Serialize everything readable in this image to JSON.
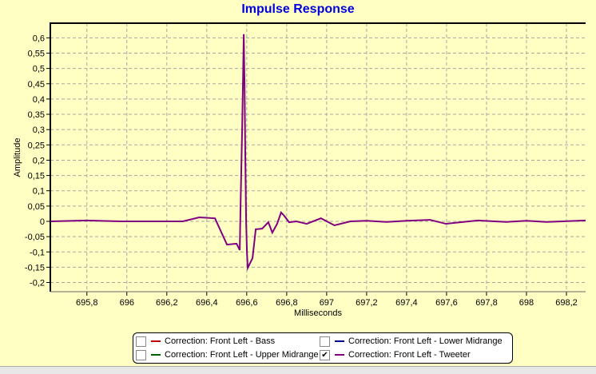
{
  "chart_data": {
    "type": "line",
    "title": "Impulse Response",
    "xlabel": "Milliseconds",
    "ylabel": "Amplitude",
    "xlim": [
      695.617,
      698.296
    ],
    "ylim": [
      -0.23,
      0.648
    ],
    "grid": true,
    "legend_placement": "bottom",
    "xticks": [
      695.8,
      696,
      696.2,
      696.4,
      696.6,
      696.8,
      697,
      697.2,
      697.4,
      697.6,
      697.8,
      698,
      698.2
    ],
    "xtick_labels": [
      "695,8",
      "696",
      "696,2",
      "696,4",
      "696,6",
      "696,8",
      "697",
      "697,2",
      "697,4",
      "697,6",
      "697,8",
      "698",
      "698,2"
    ],
    "yticks": [
      0.6,
      0.55,
      0.5,
      0.45,
      0.4,
      0.35,
      0.3,
      0.25,
      0.2,
      0.15,
      0.1,
      0.05,
      0,
      -0.05,
      -0.1,
      -0.15,
      -0.2
    ],
    "ytick_labels": [
      "0,6",
      "0,55",
      "0,5",
      "0,45",
      "0,4",
      "0,35",
      "0,3",
      "0,25",
      "0,2",
      "0,15",
      "0,1",
      "0,05",
      "0",
      "-0,05",
      "-0,1",
      "-0,15",
      "-0,2"
    ],
    "series": [
      {
        "name": "Correction: Front Left - Bass",
        "color": "#C00000",
        "checked": false,
        "x": [],
        "y": []
      },
      {
        "name": "Correction: Front Left - Lower Midrange",
        "color": "#000090",
        "checked": false,
        "x": [],
        "y": []
      },
      {
        "name": "Correction: Front Left - Upper Midrange",
        "color": "#006000",
        "checked": false,
        "x": [],
        "y": []
      },
      {
        "name": "Correction: Front Left - Tweeter",
        "color": "#800080",
        "checked": true,
        "x": [
          695.617,
          695.8,
          695.97,
          696.1,
          696.28,
          696.362,
          696.441,
          696.501,
          696.549,
          696.565,
          696.569,
          696.577,
          696.581,
          696.585,
          696.589,
          696.593,
          696.597,
          696.601,
          696.605,
          696.629,
          696.645,
          696.677,
          696.708,
          696.728,
          696.752,
          696.772,
          696.788,
          696.812,
          696.848,
          696.9,
          696.971,
          697.039,
          697.119,
          697.2,
          697.3,
          697.4,
          697.517,
          697.597,
          697.756,
          697.9,
          698.0,
          698.1,
          698.296
        ],
        "y": [
          0,
          0.003,
          0,
          0,
          0,
          0.013,
          0.01,
          -0.076,
          -0.073,
          -0.094,
          0.05,
          0.3,
          0.45,
          0.612,
          0.45,
          0.2,
          0.0,
          -0.1,
          -0.152,
          -0.12,
          -0.026,
          -0.024,
          -0.003,
          -0.037,
          -0.008,
          0.029,
          0.018,
          -0.003,
          0,
          -0.008,
          0.01,
          -0.013,
          0,
          0.002,
          -0.002,
          0.002,
          0.005,
          -0.008,
          0.003,
          -0.002,
          0.002,
          -0.002,
          0.003
        ]
      }
    ]
  }
}
